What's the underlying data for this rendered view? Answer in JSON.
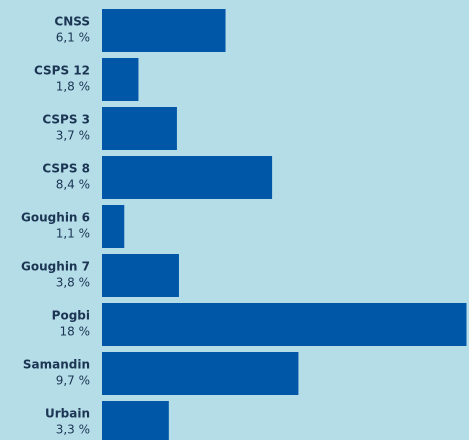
{
  "chart_data": {
    "type": "bar",
    "orientation": "horizontal",
    "color": "#0057a8",
    "categories": [
      "CNSS",
      "CSPS 12",
      "CSPS 3",
      "CSPS 8",
      "Goughin 6",
      "Goughin 7",
      "Pogbi",
      "Samandin",
      "Urbain"
    ],
    "values": [
      6.1,
      1.8,
      3.7,
      8.4,
      1.1,
      3.8,
      18,
      9.7,
      3.3
    ],
    "value_labels": [
      "6,1 %",
      "1,8 %",
      "3,7 %",
      "8,4 %",
      "1,1 %",
      "3,8 %",
      "18 %",
      "9,7 %",
      "3,3 %"
    ]
  }
}
